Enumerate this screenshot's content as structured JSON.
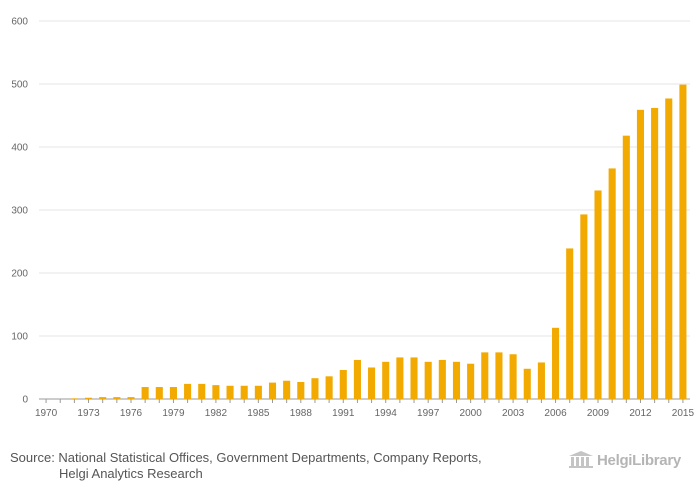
{
  "chart_data": {
    "type": "bar",
    "title": "",
    "xlabel": "",
    "ylabel": "",
    "ylim": [
      0,
      600
    ],
    "yticks": [
      0,
      100,
      200,
      300,
      400,
      500,
      600
    ],
    "xtick_labels": [
      "1970",
      "1973",
      "1976",
      "1979",
      "1982",
      "1985",
      "1988",
      "1991",
      "1994",
      "1997",
      "2000",
      "2003",
      "2006",
      "2009",
      "2012",
      "2015"
    ],
    "categories": [
      "1970",
      "1971",
      "1972",
      "1973",
      "1974",
      "1975",
      "1976",
      "1977",
      "1978",
      "1979",
      "1980",
      "1981",
      "1982",
      "1983",
      "1984",
      "1985",
      "1986",
      "1987",
      "1988",
      "1989",
      "1990",
      "1991",
      "1992",
      "1993",
      "1994",
      "1995",
      "1996",
      "1997",
      "1998",
      "1999",
      "2000",
      "2001",
      "2002",
      "2003",
      "2004",
      "2005",
      "2006",
      "2007",
      "2008",
      "2009",
      "2010",
      "2011",
      "2012",
      "2013",
      "2014",
      "2015"
    ],
    "values": [
      0,
      0,
      1,
      2,
      3,
      3,
      3,
      19,
      19,
      19,
      24,
      24,
      22,
      21,
      21,
      21,
      26,
      29,
      27,
      33,
      36,
      46,
      62,
      50,
      59,
      66,
      66,
      59,
      62,
      59,
      56,
      74,
      74,
      71,
      48,
      58,
      113,
      239,
      293,
      331,
      366,
      418,
      459,
      462,
      477,
      499
    ],
    "bar_color": "#f2a900",
    "grid": true
  },
  "footer": {
    "source_line1": "Source: National Statistical Offices, Government Departments, Company Reports,",
    "source_line2": "Helgi Analytics Research"
  },
  "logo": {
    "text": "HelgiLibrary",
    "icon": "library-building-icon"
  }
}
